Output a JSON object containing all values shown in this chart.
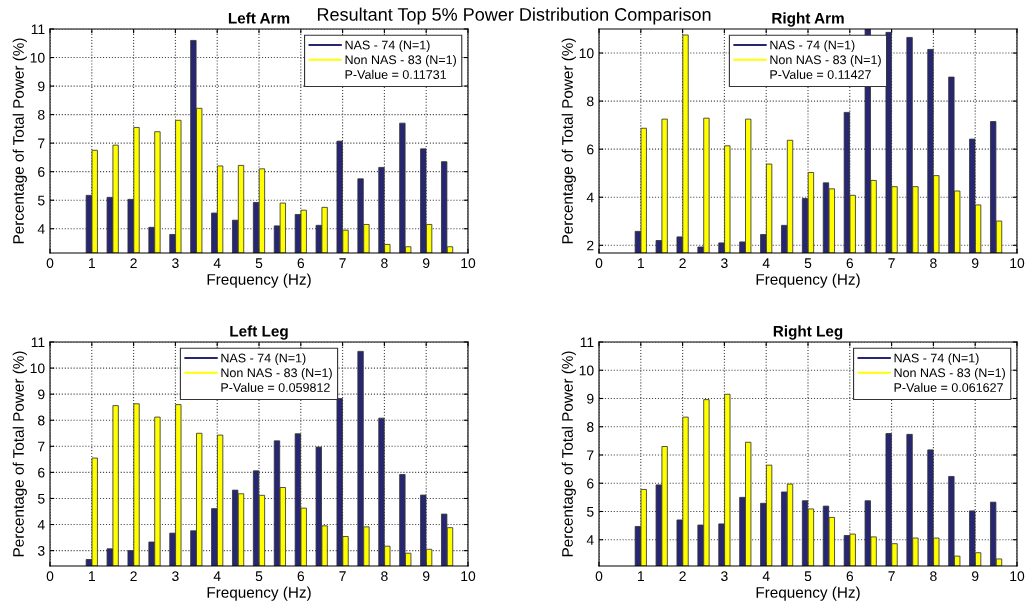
{
  "chart_data": [
    {
      "type": "bar",
      "title": "Left Arm",
      "xlabel": "Frequency (Hz)",
      "ylabel": "Percentage of Total Power (%)",
      "x": [
        1,
        1.5,
        2,
        2.5,
        3,
        3.5,
        4,
        4.5,
        5,
        5.5,
        6,
        6.5,
        7,
        7.5,
        8,
        8.5,
        9,
        9.5
      ],
      "series": [
        {
          "name": "NAS - 74 (N=1)",
          "color": "#262673",
          "values": [
            5.17,
            5.1,
            5.03,
            4.05,
            3.8,
            10.6,
            4.55,
            4.3,
            4.92,
            4.1,
            4.5,
            4.12,
            7.07,
            5.75,
            6.15,
            7.7,
            6.8,
            6.35
          ]
        },
        {
          "name": "Non NAS - 83 (N=1)",
          "color": "#ffff00",
          "values": [
            6.75,
            6.93,
            7.55,
            7.4,
            7.8,
            8.22,
            6.2,
            6.22,
            6.1,
            4.9,
            4.65,
            4.75,
            3.95,
            4.15,
            3.45,
            3.37,
            4.15,
            3.37
          ]
        }
      ],
      "xlim": [
        0,
        10
      ],
      "xticks": [
        0,
        1,
        2,
        3,
        4,
        5,
        6,
        7,
        8,
        9,
        10
      ],
      "ylim": [
        3.15,
        11
      ],
      "yticks": [
        4,
        5,
        6,
        7,
        8,
        9,
        10,
        11
      ],
      "grid": true,
      "legend": "top right",
      "annotations": [
        "Resultant Top 5% Power Distribution Comparison",
        "P-Value = 0.11731"
      ]
    },
    {
      "type": "bar",
      "title": "Right Arm",
      "xlabel": "Frequency (Hz)",
      "ylabel": "Percentage of Total Power (%)",
      "x": [
        1,
        1.5,
        2,
        2.5,
        3,
        3.5,
        4,
        4.5,
        5,
        5.5,
        6,
        6.5,
        7,
        7.5,
        8,
        8.5,
        9,
        9.5
      ],
      "series": [
        {
          "name": "NAS - 74 (N=1)",
          "color": "#262673",
          "values": [
            2.58,
            2.2,
            2.35,
            1.93,
            2.1,
            2.14,
            2.45,
            2.83,
            3.95,
            4.6,
            7.53,
            11,
            10.86,
            10.65,
            10.15,
            9.0,
            6.42,
            7.15
          ]
        },
        {
          "name": "Non NAS - 83 (N=1)",
          "color": "#ffff00",
          "values": [
            6.87,
            7.25,
            10.75,
            7.29,
            6.14,
            7.25,
            5.38,
            6.37,
            5.03,
            4.35,
            4.08,
            4.7,
            4.44,
            4.44,
            4.9,
            4.26,
            3.68,
            3.01
          ]
        }
      ],
      "xlim": [
        0,
        10
      ],
      "xticks": [
        0,
        1,
        2,
        3,
        4,
        5,
        6,
        7,
        8,
        9,
        10
      ],
      "ylim": [
        1.68,
        11
      ],
      "yticks": [
        2,
        4,
        6,
        8,
        10
      ],
      "grid": true,
      "legend": "top",
      "annotations": [
        "P-Value = 0.11427"
      ]
    },
    {
      "type": "bar",
      "title": "Left Leg",
      "xlabel": "Frequency (Hz)",
      "ylabel": "Percentage of Total Power (%)",
      "x": [
        1,
        1.5,
        2,
        2.5,
        3,
        3.5,
        4,
        4.5,
        5,
        5.5,
        6,
        6.5,
        7,
        7.5,
        8,
        8.5,
        9,
        9.5
      ],
      "series": [
        {
          "name": "NAS - 74 (N=1)",
          "color": "#262673",
          "values": [
            2.66,
            3.07,
            3.0,
            3.33,
            3.67,
            3.76,
            4.61,
            5.32,
            6.06,
            7.21,
            7.48,
            6.97,
            8.83,
            10.64,
            8.08,
            5.92,
            5.13,
            4.4
          ]
        },
        {
          "name": "Non NAS - 83 (N=1)",
          "color": "#ffff00",
          "values": [
            6.55,
            8.56,
            8.63,
            8.12,
            8.6,
            7.5,
            7.43,
            5.18,
            5.12,
            5.42,
            4.63,
            3.95,
            3.54,
            3.91,
            3.17,
            2.9,
            3.05,
            3.88
          ]
        }
      ],
      "xlim": [
        0,
        10
      ],
      "xticks": [
        0,
        1,
        2,
        3,
        4,
        5,
        6,
        7,
        8,
        9,
        10
      ],
      "ylim": [
        2.41,
        11
      ],
      "yticks": [
        3,
        4,
        5,
        6,
        7,
        8,
        9,
        10,
        11
      ],
      "grid": true,
      "legend": "top",
      "annotations": [
        "P-Value = 0.059812"
      ]
    },
    {
      "type": "bar",
      "title": "Right Leg",
      "xlabel": "Frequency (Hz)",
      "ylabel": "Percentage of Total Power (%)",
      "x": [
        1,
        1.5,
        2,
        2.5,
        3,
        3.5,
        4,
        4.5,
        5,
        5.5,
        6,
        6.5,
        7,
        7.5,
        8,
        8.5,
        9,
        9.5
      ],
      "series": [
        {
          "name": "NAS - 74 (N=1)",
          "color": "#262673",
          "values": [
            4.47,
            5.94,
            4.7,
            4.52,
            4.56,
            5.5,
            5.29,
            5.69,
            5.38,
            5.19,
            4.15,
            5.38,
            7.76,
            7.73,
            7.18,
            6.24,
            5.02,
            5.33
          ]
        },
        {
          "name": "Non NAS - 83 (N=1)",
          "color": "#ffff00",
          "values": [
            5.78,
            7.3,
            8.34,
            8.96,
            9.15,
            7.45,
            6.64,
            5.97,
            5.09,
            4.79,
            4.2,
            4.1,
            3.86,
            4.06,
            4.06,
            3.42,
            3.54,
            3.32
          ]
        }
      ],
      "xlim": [
        0,
        10
      ],
      "xticks": [
        0,
        1,
        2,
        3,
        4,
        5,
        6,
        7,
        8,
        9,
        10
      ],
      "ylim": [
        3.07,
        11
      ],
      "yticks": [
        4,
        5,
        6,
        7,
        8,
        9,
        10,
        11
      ],
      "grid": true,
      "legend": "top right",
      "annotations": [
        "P-Value = 0.061627"
      ]
    }
  ]
}
